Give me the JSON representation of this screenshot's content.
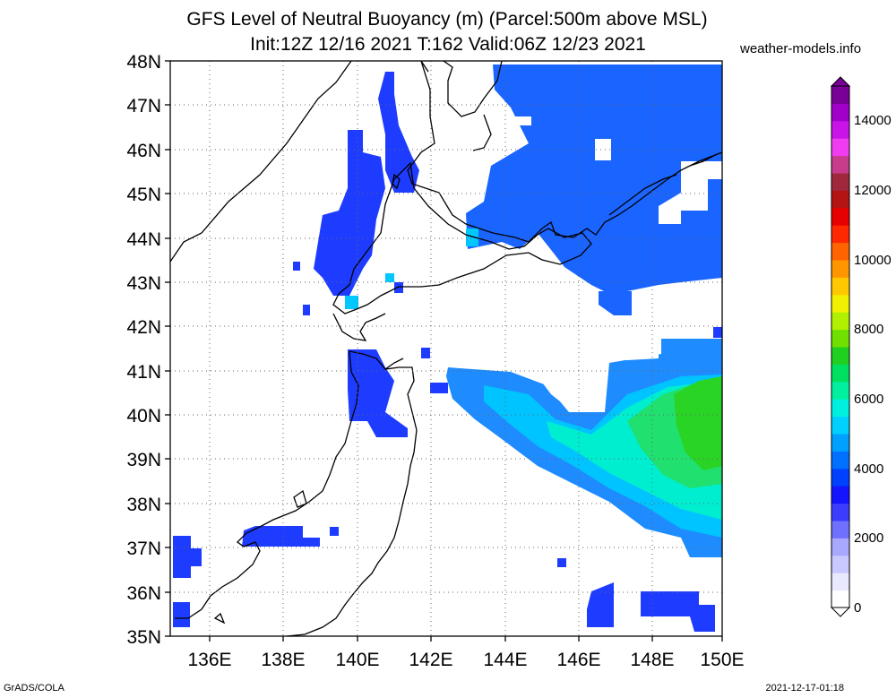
{
  "title_line1": "GFS Level of Neutral Buoyancy (m) (Parcel:500m above MSL)",
  "title_line2": "Init:12Z 12/16 2021 T:162 Valid:06Z 12/23 2021",
  "site": "weather-models.info",
  "footer_left": "GrADS/COLA",
  "footer_right": "2021-12-17-01:18",
  "lat_labels": [
    "35N",
    "36N",
    "37N",
    "38N",
    "39N",
    "40N",
    "41N",
    "42N",
    "43N",
    "44N",
    "45N",
    "46N",
    "47N",
    "48N"
  ],
  "lon_labels": [
    "136E",
    "138E",
    "140E",
    "142E",
    "144E",
    "146E",
    "148E",
    "150E"
  ],
  "colorbar": {
    "tick_labels": [
      "0",
      "2000",
      "4000",
      "6000",
      "8000",
      "10000",
      "12000",
      "14000"
    ],
    "min": 0,
    "max": 15000,
    "unit": "m",
    "colors": [
      "#ffffff",
      "#e8e8ff",
      "#c9c9ff",
      "#a8a8ff",
      "#7070ff",
      "#3c3cff",
      "#1414ff",
      "#0040ff",
      "#0070ff",
      "#00a0ff",
      "#00d0ff",
      "#00f0e0",
      "#00f0a0",
      "#00e060",
      "#20d020",
      "#70e000",
      "#b0f000",
      "#f0f000",
      "#ffc800",
      "#ff9600",
      "#ff6400",
      "#ff2800",
      "#e60000",
      "#b41414",
      "#a0283c",
      "#c83c8c",
      "#f03cf0",
      "#c814e6",
      "#a000c8",
      "#780096"
    ]
  },
  "legend_colors": {
    "land_outline": "#000000",
    "grid": "#555555",
    "low": "#1428ff",
    "mid": "#00c8ff",
    "high": "#20d020"
  }
}
